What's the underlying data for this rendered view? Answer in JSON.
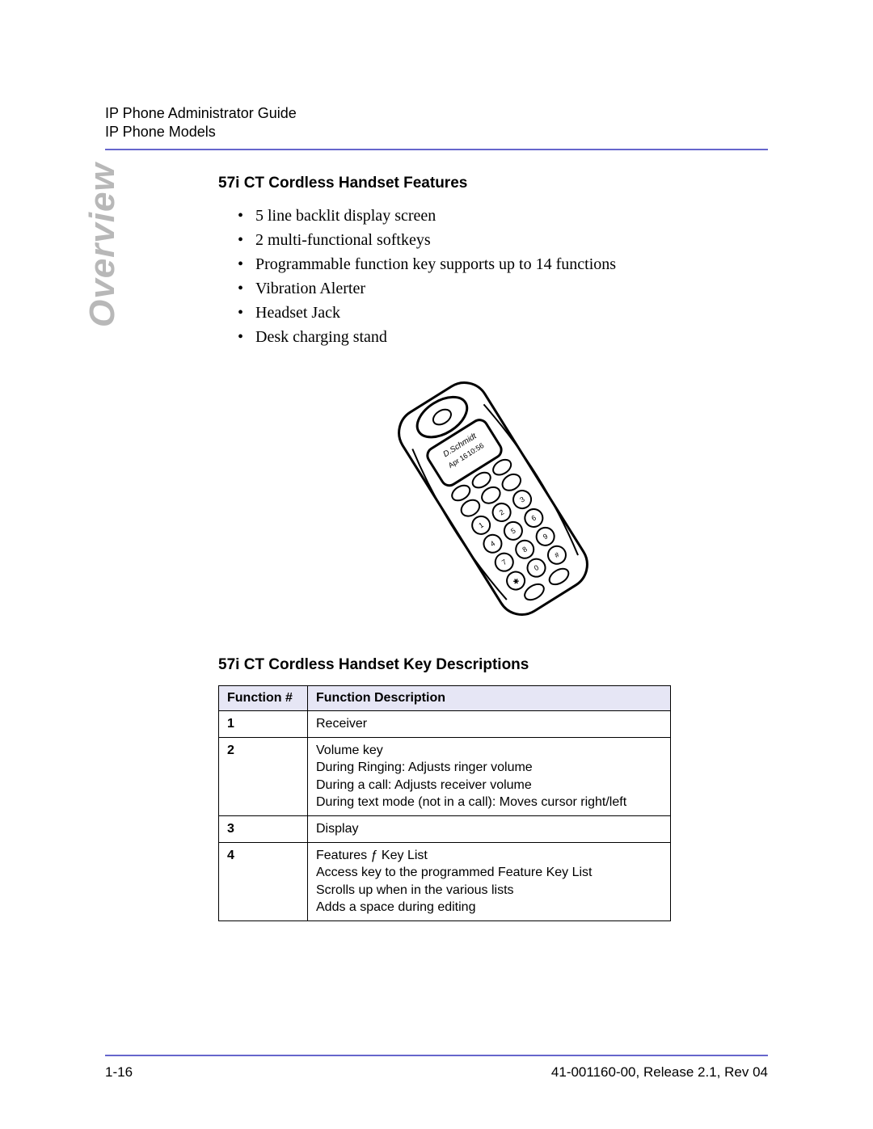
{
  "header": {
    "line1": "IP Phone Administrator Guide",
    "line2": "IP Phone Models"
  },
  "side_label": "Overview",
  "section1": {
    "heading": "57i CT Cordless Handset Features",
    "bullets": [
      "5 line backlit display screen",
      "2 multi-functional softkeys",
      "Programmable function key supports up to 14 functions",
      "Vibration Alerter",
      "Headset Jack",
      "Desk charging stand"
    ]
  },
  "illustration": {
    "display_text_name": "D.Schmidt",
    "display_text_date": "Apr 16",
    "display_text_time": "10:56"
  },
  "section2": {
    "heading": "57i CT Cordless Handset Key Descriptions",
    "columns": [
      "Function #",
      "Function Description"
    ],
    "rows": [
      {
        "num": "1",
        "desc": "Receiver"
      },
      {
        "num": "2",
        "desc": "Volume key\nDuring Ringing: Adjusts ringer volume\nDuring a call: Adjusts receiver volume\nDuring text mode (not in a call): Moves cursor right/left"
      },
      {
        "num": "3",
        "desc": "Display"
      },
      {
        "num": "4",
        "desc": "Features ƒ Key List\nAccess key to the programmed Feature Key List\nScrolls up when in the various lists\nAdds a space during editing"
      }
    ]
  },
  "footer": {
    "left": "1-16",
    "right": "41-001160-00, Release 2.1, Rev 04"
  },
  "colors": {
    "rule": "#6666cc",
    "side_label": "#b8b8b8",
    "table_header_bg": "#e6e6f5"
  }
}
